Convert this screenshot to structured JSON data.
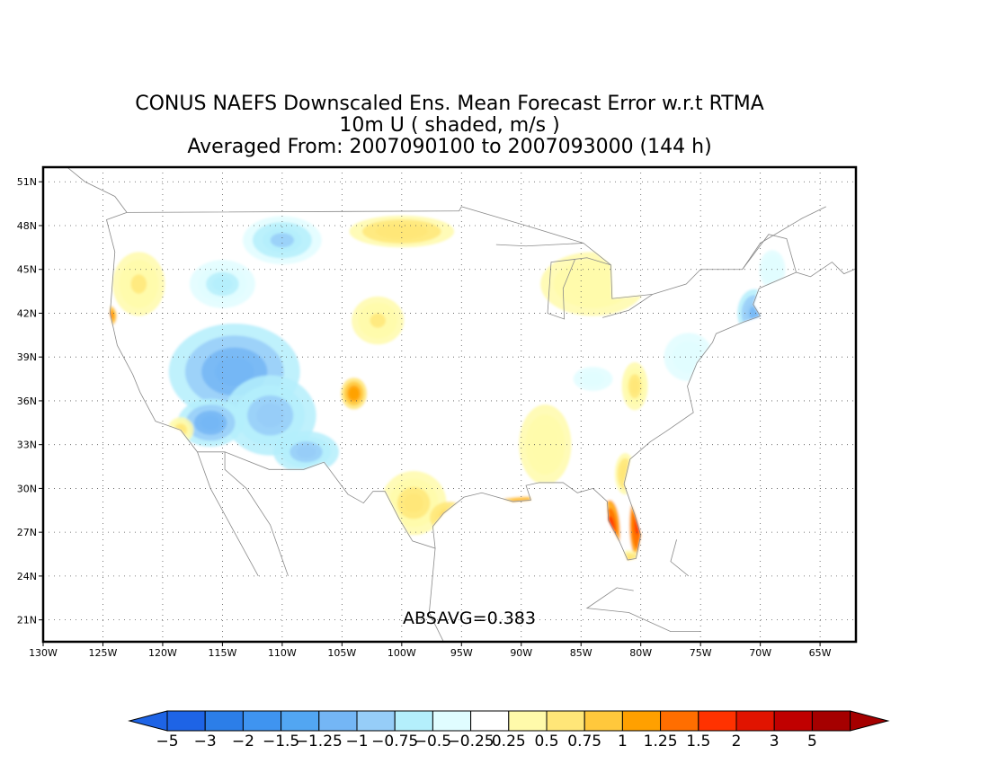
{
  "title": {
    "line1": "CONUS NAEFS Downscaled Ens. Mean Forecast Error w.r.t RTMA",
    "line2": "10m U ( shaded, m/s )",
    "line3": "Averaged From: 2007090100 to 2007093000 (144 h)"
  },
  "map": {
    "region": "Continental United States",
    "projection": "lat-lon",
    "lon_range": [
      -130,
      -62
    ],
    "lat_range": [
      19.5,
      52
    ],
    "gridlines": true,
    "lon_ticks": [
      "130W",
      "125W",
      "120W",
      "115W",
      "110W",
      "105W",
      "100W",
      "95W",
      "90W",
      "85W",
      "80W",
      "75W",
      "70W",
      "65W"
    ],
    "lat_ticks": [
      "21N",
      "24N",
      "27N",
      "30N",
      "33N",
      "36N",
      "39N",
      "42N",
      "45N",
      "48N",
      "51N"
    ],
    "annotation": "ABSAVG=0.383"
  },
  "colorbar": {
    "labels": [
      "−5",
      "−3",
      "−2",
      "−1.5",
      "−1.25",
      "−1",
      "−0.75",
      "−0.5",
      "−0.25",
      "0.25",
      "0.5",
      "0.75",
      "1",
      "1.25",
      "1.5",
      "2",
      "3",
      "5"
    ],
    "colors": [
      "#1e64e6",
      "#2c7ee8",
      "#3f94f0",
      "#52a6f2",
      "#74b6f5",
      "#96cdf8",
      "#b4effc",
      "#e0fdff",
      "#ffffff",
      "#fffaaa",
      "#ffe678",
      "#ffc83c",
      "#ffa000",
      "#ff6e00",
      "#ff3200",
      "#e11400",
      "#c00000",
      "#a50000"
    ],
    "left_arrow_color": "#1e64e6",
    "right_arrow_color": "#a50000"
  },
  "field_regions": [
    {
      "name": "great-basin",
      "lon": -114,
      "lat": 38,
      "sx": 5,
      "sy": 3,
      "value": -1.25
    },
    {
      "name": "arizona-plateau",
      "lon": -111,
      "lat": 35,
      "sx": 3.5,
      "sy": 2.5,
      "value": -1.0
    },
    {
      "name": "nevada-south",
      "lon": -116,
      "lat": 34.5,
      "sx": 2.5,
      "sy": 1.5,
      "value": -1.2
    },
    {
      "name": "northern-rockies",
      "lon": -110,
      "lat": 47,
      "sx": 3,
      "sy": 1.5,
      "value": -0.8
    },
    {
      "name": "idaho",
      "lon": -115,
      "lat": 44,
      "sx": 2.5,
      "sy": 1.5,
      "value": -0.6
    },
    {
      "name": "new-mexico",
      "lon": -108,
      "lat": 32.5,
      "sx": 2.5,
      "sy": 1.3,
      "value": -1.0
    },
    {
      "name": "oregon-coast",
      "lon": -122,
      "lat": 44,
      "sx": 2,
      "sy": 2,
      "value": 0.55
    },
    {
      "name": "cape-mendocino",
      "lon": -124.6,
      "lat": 41.8,
      "sx": 0.7,
      "sy": 0.7,
      "value": 1.5
    },
    {
      "name": "socal",
      "lon": -118.5,
      "lat": 34,
      "sx": 1,
      "sy": 0.8,
      "value": 0.6
    },
    {
      "name": "northern-plains",
      "lon": -100,
      "lat": 47.6,
      "sx": 4,
      "sy": 1,
      "value": 0.7
    },
    {
      "name": "colorado-front",
      "lon": -104,
      "lat": 36.5,
      "sx": 1,
      "sy": 1,
      "value": 1.2
    },
    {
      "name": "nebraska",
      "lon": -102,
      "lat": 41.5,
      "sx": 2,
      "sy": 1.5,
      "value": 0.55
    },
    {
      "name": "south-texas",
      "lon": -99,
      "lat": 29,
      "sx": 2.5,
      "sy": 2,
      "value": 0.6
    },
    {
      "name": "texas-coast",
      "lon": -96,
      "lat": 28,
      "sx": 1.5,
      "sy": 1,
      "value": 0.9
    },
    {
      "name": "gulf-louisiana",
      "lon": -89,
      "lat": 28.8,
      "sx": 3.5,
      "sy": 0.6,
      "value": 1.5
    },
    {
      "name": "mississippi-valley",
      "lon": -88,
      "lat": 33,
      "sx": 2,
      "sy": 2.5,
      "value": 0.5
    },
    {
      "name": "florida-west",
      "lon": -82.6,
      "lat": 27,
      "sx": 0.8,
      "sy": 2,
      "value": 2.0
    },
    {
      "name": "florida-east",
      "lon": -80.3,
      "lat": 27.5,
      "sx": 0.6,
      "sy": 2,
      "value": 1.7
    },
    {
      "name": "florida-south",
      "lon": -81,
      "lat": 25,
      "sx": 1,
      "sy": 0.7,
      "value": 0.8
    },
    {
      "name": "georgia-coast",
      "lon": -81.3,
      "lat": 31,
      "sx": 0.8,
      "sy": 1.3,
      "value": 0.7
    },
    {
      "name": "great-lakes",
      "lon": -84,
      "lat": 44,
      "sx": 4,
      "sy": 2,
      "value": 0.45
    },
    {
      "name": "new-england",
      "lon": -70.5,
      "lat": 42,
      "sx": 1.3,
      "sy": 1.5,
      "value": -1.1
    },
    {
      "name": "maine",
      "lon": -69,
      "lat": 45,
      "sx": 1,
      "sy": 1.2,
      "value": -0.5
    },
    {
      "name": "mid-atlantic",
      "lon": -76,
      "lat": 39,
      "sx": 2.5,
      "sy": 2,
      "value": -0.35
    },
    {
      "name": "kentucky",
      "lon": -84,
      "lat": 37.5,
      "sx": 3,
      "sy": 1.5,
      "value": -0.3
    },
    {
      "name": "appalachia",
      "lon": -80.5,
      "lat": 37,
      "sx": 1,
      "sy": 1.5,
      "value": 0.6
    }
  ]
}
